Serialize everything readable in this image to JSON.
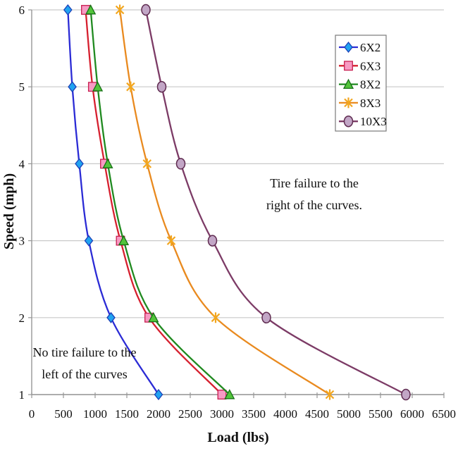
{
  "chart_data": {
    "type": "line",
    "title": "",
    "xlabel": "Load (lbs)",
    "ylabel": "Speed (mph)",
    "xlim": [
      0,
      6500
    ],
    "ylim": [
      1,
      6
    ],
    "x_ticks": [
      0,
      500,
      1000,
      1500,
      2000,
      2500,
      3000,
      3500,
      4000,
      4500,
      5000,
      5500,
      6000,
      6500
    ],
    "y_ticks": [
      1,
      2,
      3,
      4,
      5,
      6
    ],
    "grid": "horizontal-only",
    "grid_color": "#c9c9c9",
    "axis_color": "#969696",
    "legend_position": "top-right-inside",
    "line_style": "smooth",
    "series": [
      {
        "name": "6X2",
        "marker": "diamond",
        "line_color": "#2b2bd5",
        "marker_fill": "#21a3f0",
        "marker_edge": "#1a3fb8",
        "speeds": [
          1,
          2,
          3,
          4,
          5,
          6
        ],
        "loads": [
          2000,
          1250,
          900,
          750,
          640,
          570
        ]
      },
      {
        "name": "6X3",
        "marker": "square",
        "line_color": "#d6202f",
        "marker_fill": "#f79ac3",
        "marker_edge": "#c81e50",
        "speeds": [
          1,
          2,
          3,
          4,
          5,
          6
        ],
        "loads": [
          3000,
          1850,
          1400,
          1150,
          960,
          850
        ]
      },
      {
        "name": "8X2",
        "marker": "triangle",
        "line_color": "#208a20",
        "marker_fill": "#52c43a",
        "marker_edge": "#177017",
        "speeds": [
          1,
          2,
          3,
          4,
          5,
          6
        ],
        "loads": [
          3120,
          1920,
          1450,
          1200,
          1040,
          930
        ]
      },
      {
        "name": "8X3",
        "marker": "star",
        "line_color": "#e98a1f",
        "marker_fill": "#f2a61f",
        "marker_edge": "#e98a1f",
        "speeds": [
          1,
          2,
          3,
          4,
          5,
          6
        ],
        "loads": [
          4700,
          2900,
          2200,
          1820,
          1560,
          1390
        ]
      },
      {
        "name": "10X3",
        "marker": "circle",
        "line_color": "#7c3b66",
        "marker_fill": "#c2a6c6",
        "marker_edge": "#5f2b50",
        "speeds": [
          1,
          2,
          3,
          4,
          5,
          6
        ],
        "loads": [
          5900,
          3700,
          2850,
          2350,
          2050,
          1800
        ]
      }
    ],
    "annotations": [
      {
        "id": "right-of-curves",
        "line1": "Tire failure to the",
        "line2": "right of the curves."
      },
      {
        "id": "left-of-curves",
        "line1": "No tire failure to the",
        "line2": "left of the curves"
      }
    ]
  }
}
